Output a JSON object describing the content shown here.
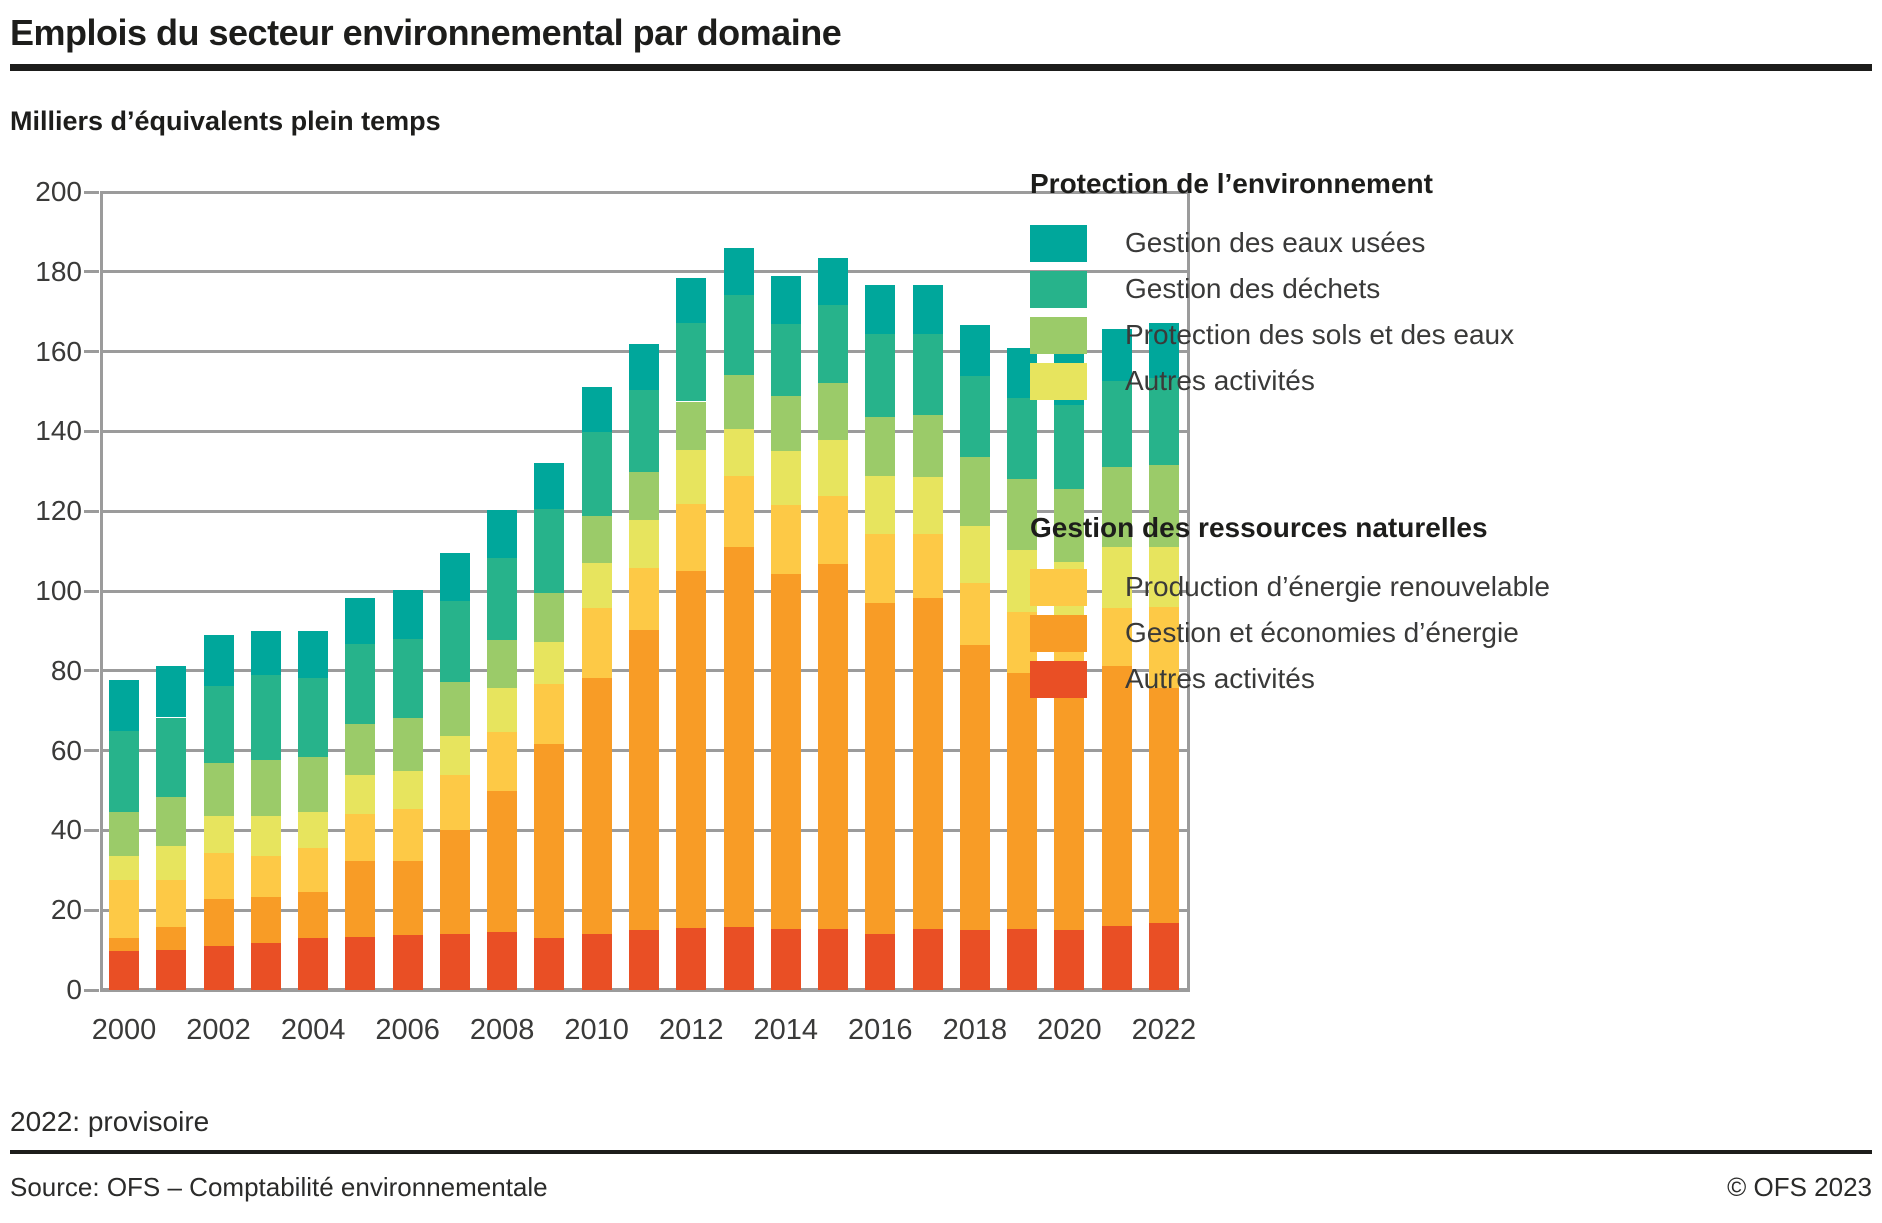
{
  "title": "Emplois du secteur environnemental par domaine",
  "subtitle": "Milliers d’équivalents plein temps",
  "footnote": "2022: provisoire",
  "footer": {
    "source": "Source: OFS – Comptabilité environnementale",
    "copyright": "© OFS 2023"
  },
  "colors": {
    "pe_eaux": "#00a79b",
    "pe_dechets": "#27b38b",
    "pe_sols": "#9bcb69",
    "pe_autres": "#e7e45e",
    "grn_renouvelable": "#fdc946",
    "grn_energie": "#f89c26",
    "grn_autres": "#e94f25",
    "grid": "#9b9b9b",
    "text": "#1d1d1b"
  },
  "legend": {
    "groups": [
      {
        "title": "Protection de l’environnement",
        "items": [
          {
            "label": "Gestion des eaux usées",
            "color_key": "pe_eaux"
          },
          {
            "label": "Gestion des déchets",
            "color_key": "pe_dechets"
          },
          {
            "label": "Protection des sols et des eaux",
            "color_key": "pe_sols"
          },
          {
            "label": "Autres activités",
            "color_key": "pe_autres"
          }
        ]
      },
      {
        "title": "Gestion des ressources naturelles",
        "items": [
          {
            "label": "Production d’énergie renouvelable",
            "color_key": "grn_renouvelable"
          },
          {
            "label": "Gestion et économies d’énergie",
            "color_key": "grn_energie"
          },
          {
            "label": "Autres activités",
            "color_key": "grn_autres"
          }
        ]
      }
    ]
  },
  "chart_data": {
    "type": "bar",
    "stacked": true,
    "stack_order": "bottom_to_top",
    "title": "Emplois du secteur environnemental par domaine",
    "ylabel": "Milliers d’équivalents plein temps",
    "ylim": [
      0,
      200
    ],
    "ytick_step": 20,
    "grid": true,
    "legend_position": "right",
    "categories": [
      2000,
      2001,
      2002,
      2003,
      2004,
      2005,
      2006,
      2007,
      2008,
      2009,
      2010,
      2011,
      2012,
      2013,
      2014,
      2015,
      2016,
      2017,
      2018,
      2019,
      2020,
      2021,
      2022
    ],
    "x_tick_labels": [
      "2000",
      "2002",
      "2004",
      "2006",
      "2008",
      "2010",
      "2012",
      "2014",
      "2016",
      "2018",
      "2020",
      "2022"
    ],
    "series": [
      {
        "name": "Autres activités",
        "group": "Gestion des ressources naturelles",
        "color_key": "grn_autres",
        "values": [
          9.7,
          10.0,
          11.0,
          11.9,
          13.0,
          13.4,
          13.7,
          14.0,
          14.6,
          13.1,
          14.0,
          15.1,
          15.5,
          15.8,
          15.2,
          15.2,
          14.1,
          15.2,
          15.0,
          15.2,
          15.1,
          16.1,
          16.7
        ]
      },
      {
        "name": "Gestion et économies d’énergie",
        "group": "Gestion des ressources naturelles",
        "color_key": "grn_energie",
        "values": [
          3.4,
          5.7,
          11.9,
          11.4,
          11.6,
          18.9,
          18.6,
          26.2,
          35.4,
          48.6,
          64.1,
          75.1,
          89.6,
          95.3,
          89.0,
          91.5,
          82.8,
          83.0,
          71.5,
          64.3,
          60.6,
          65.0,
          59.0
        ]
      },
      {
        "name": "Production d’énergie renouvelable",
        "group": "Gestion des ressources naturelles",
        "color_key": "grn_renouvelable",
        "values": [
          14.4,
          11.8,
          11.4,
          10.4,
          11.0,
          11.9,
          13.0,
          13.6,
          14.6,
          15.1,
          17.6,
          15.5,
          16.8,
          17.8,
          17.4,
          17.1,
          17.3,
          16.0,
          15.4,
          15.3,
          17.2,
          14.6,
          20.4
        ]
      },
      {
        "name": "Autres activités",
        "group": "Protection de l’environnement",
        "color_key": "pe_autres",
        "values": [
          6.2,
          8.5,
          9.3,
          9.9,
          8.9,
          9.8,
          9.7,
          9.9,
          11.0,
          10.5,
          11.4,
          12.0,
          13.5,
          11.7,
          13.5,
          14.1,
          14.7,
          14.3,
          14.5,
          15.6,
          14.4,
          15.3,
          14.9
        ]
      },
      {
        "name": "Protection des sols et des eaux",
        "group": "Protection de l’environnement",
        "color_key": "pe_sols",
        "values": [
          11.0,
          12.3,
          13.3,
          14.0,
          13.9,
          12.7,
          13.1,
          13.6,
          12.0,
          12.3,
          11.6,
          12.1,
          12.1,
          13.5,
          13.7,
          14.3,
          14.6,
          15.6,
          17.1,
          17.7,
          18.3,
          20.0,
          20.6
        ]
      },
      {
        "name": "Gestion des déchets",
        "group": "Protection de l’environnement",
        "color_key": "pe_dechets",
        "values": [
          20.1,
          20.0,
          19.3,
          21.4,
          19.9,
          19.9,
          19.9,
          20.1,
          20.7,
          21.0,
          21.1,
          20.6,
          19.7,
          20.2,
          18.1,
          19.6,
          20.8,
          20.2,
          20.3,
          20.4,
          21.0,
          21.6,
          21.8
        ]
      },
      {
        "name": "Gestion des eaux usées",
        "group": "Protection de l’environnement",
        "color_key": "pe_eaux",
        "values": [
          13.0,
          13.0,
          12.9,
          10.9,
          11.7,
          11.6,
          12.2,
          12.1,
          12.1,
          11.4,
          11.3,
          11.6,
          11.2,
          11.6,
          12.1,
          11.6,
          12.5,
          12.5,
          12.8,
          12.5,
          12.7,
          13.0,
          13.8
        ]
      }
    ]
  }
}
